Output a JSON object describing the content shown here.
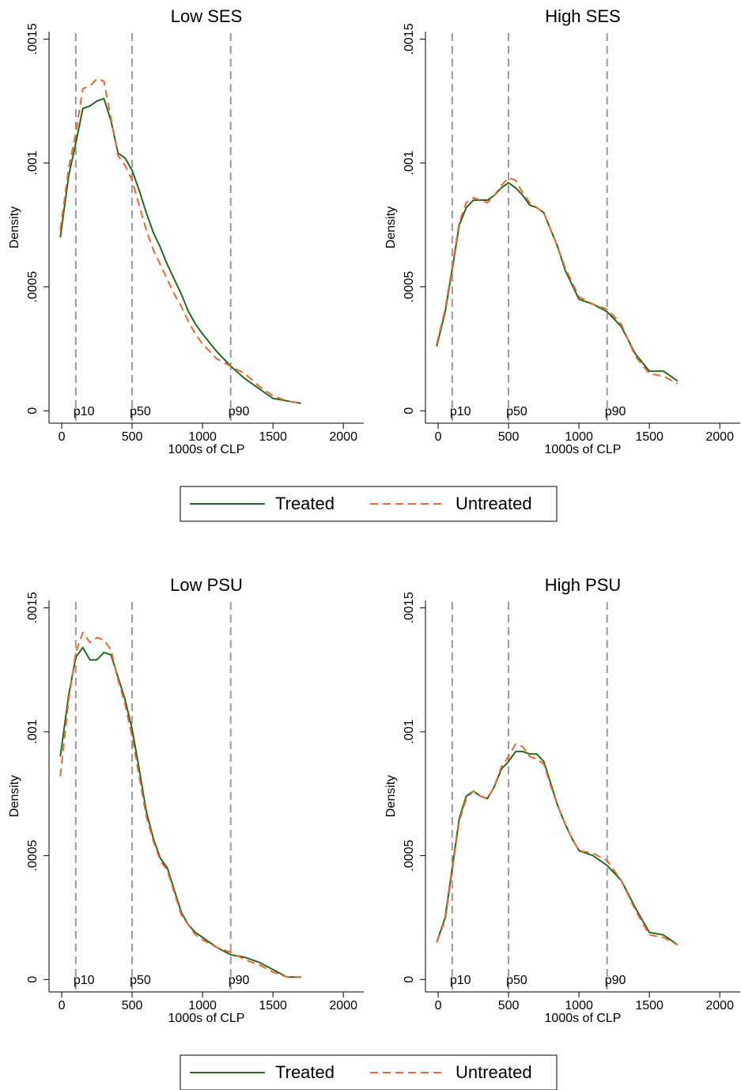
{
  "chart_data": [
    {
      "type": "line",
      "title": "Low SES",
      "xlabel": "1000s of CLP",
      "ylabel": "Density",
      "x": [
        -10,
        50,
        100,
        150,
        200,
        250,
        300,
        350,
        400,
        450,
        500,
        550,
        600,
        650,
        700,
        750,
        800,
        850,
        900,
        950,
        1000,
        1100,
        1200,
        1300,
        1400,
        1500,
        1600,
        1700
      ],
      "series": [
        {
          "name": "Treated",
          "color": "#1f6b1f",
          "style": "solid",
          "values": [
            0.0007,
            0.00095,
            0.00108,
            0.00122,
            0.00123,
            0.00125,
            0.00126,
            0.00117,
            0.00104,
            0.00102,
            0.00097,
            0.00089,
            0.0008,
            0.00072,
            0.00066,
            0.00059,
            0.00053,
            0.00047,
            0.0004,
            0.00035,
            0.00031,
            0.00024,
            0.00018,
            0.00013,
            9e-05,
            5e-05,
            4e-05,
            3e-05
          ]
        },
        {
          "name": "Untreated",
          "color": "#f0642d",
          "style": "dashed",
          "values": [
            0.00073,
            0.00098,
            0.00112,
            0.0013,
            0.00131,
            0.00134,
            0.00133,
            0.00118,
            0.00103,
            0.00099,
            0.00093,
            0.00083,
            0.00073,
            0.00065,
            0.00059,
            0.00053,
            0.00047,
            0.00042,
            0.00036,
            0.00031,
            0.00027,
            0.00021,
            0.00018,
            0.00015,
            0.0001,
            6e-05,
            4e-05,
            3e-05
          ]
        }
      ],
      "vlines": [
        {
          "value": 100,
          "label": "p10"
        },
        {
          "value": 500,
          "label": "p50"
        },
        {
          "value": 1200,
          "label": "p90"
        }
      ],
      "xlim": [
        -90,
        2145
      ],
      "xticks": [
        0,
        500,
        1000,
        1500,
        2000
      ],
      "ylim": [
        -5e-05,
        0.00153
      ],
      "yticks": [
        0,
        {
          "value": 0.0005,
          "label": ".0005"
        },
        {
          "value": 0.001,
          "label": ".001"
        },
        {
          "value": 0.0015,
          "label": ".0015"
        }
      ],
      "legend": "bottom"
    },
    {
      "type": "line",
      "title": "High SES",
      "xlabel": "1000s of CLP",
      "ylabel": "Density",
      "x": [
        -10,
        50,
        100,
        150,
        200,
        250,
        300,
        350,
        400,
        450,
        500,
        550,
        600,
        650,
        700,
        750,
        800,
        850,
        900,
        950,
        1000,
        1100,
        1200,
        1300,
        1400,
        1500,
        1600,
        1700
      ],
      "series": [
        {
          "name": "Treated",
          "color": "#1f6b1f",
          "style": "solid",
          "values": [
            0.00026,
            0.0004,
            0.00057,
            0.00075,
            0.00082,
            0.00085,
            0.00085,
            0.00085,
            0.00087,
            0.0009,
            0.00092,
            0.0009,
            0.00087,
            0.00083,
            0.00082,
            0.0008,
            0.00073,
            0.00066,
            0.00057,
            0.00051,
            0.00045,
            0.00043,
            0.0004,
            0.00034,
            0.00023,
            0.00016,
            0.00016,
            0.00012
          ]
        },
        {
          "name": "Untreated",
          "color": "#f0642d",
          "style": "dashed",
          "values": [
            0.00027,
            0.00041,
            0.00058,
            0.00076,
            0.00084,
            0.00086,
            0.00085,
            0.00084,
            0.00087,
            0.00091,
            0.00094,
            0.00093,
            0.00088,
            0.00084,
            0.00082,
            0.0008,
            0.00073,
            0.00066,
            0.00058,
            0.00052,
            0.00046,
            0.00043,
            0.00041,
            0.00035,
            0.00022,
            0.00015,
            0.00014,
            0.00011
          ]
        }
      ],
      "vlines": [
        {
          "value": 100,
          "label": "p10"
        },
        {
          "value": 500,
          "label": "p50"
        },
        {
          "value": 1200,
          "label": "p90"
        }
      ],
      "xlim": [
        -90,
        2145
      ],
      "xticks": [
        0,
        500,
        1000,
        1500,
        2000
      ],
      "ylim": [
        -5e-05,
        0.00153
      ],
      "yticks": [
        0,
        {
          "value": 0.0005,
          "label": ".0005"
        },
        {
          "value": 0.001,
          "label": ".001"
        },
        {
          "value": 0.0015,
          "label": ".0015"
        }
      ]
    },
    {
      "type": "line",
      "title": "Low PSU",
      "xlabel": "1000s of CLP",
      "ylabel": "Density",
      "x": [
        -10,
        50,
        100,
        150,
        200,
        250,
        300,
        350,
        400,
        450,
        500,
        550,
        600,
        650,
        700,
        750,
        800,
        850,
        900,
        950,
        1000,
        1100,
        1200,
        1300,
        1400,
        1500,
        1600,
        1700
      ],
      "series": [
        {
          "name": "Treated",
          "color": "#1f6b1f",
          "style": "solid",
          "values": [
            0.0009,
            0.00115,
            0.0013,
            0.00134,
            0.00129,
            0.00129,
            0.00132,
            0.00131,
            0.00122,
            0.00113,
            0.00101,
            0.00085,
            0.00068,
            0.00057,
            0.00049,
            0.00045,
            0.00036,
            0.00027,
            0.00022,
            0.00019,
            0.00017,
            0.00013,
            0.0001,
            9e-05,
            7e-05,
            4e-05,
            1e-05,
            1e-05
          ]
        },
        {
          "name": "Untreated",
          "color": "#f0642d",
          "style": "dashed",
          "values": [
            0.00082,
            0.00113,
            0.00132,
            0.0014,
            0.00136,
            0.00138,
            0.00137,
            0.00133,
            0.00121,
            0.00111,
            0.00098,
            0.00082,
            0.00066,
            0.00056,
            0.00048,
            0.00044,
            0.00035,
            0.00026,
            0.00022,
            0.00018,
            0.00016,
            0.00013,
            0.00011,
            8e-05,
            6e-05,
            3e-05,
            1e-05,
            1e-05
          ]
        }
      ],
      "vlines": [
        {
          "value": 100,
          "label": "p10"
        },
        {
          "value": 500,
          "label": "p50"
        },
        {
          "value": 1200,
          "label": "p90"
        }
      ],
      "xlim": [
        -90,
        2145
      ],
      "xticks": [
        0,
        500,
        1000,
        1500,
        2000
      ],
      "ylim": [
        -5e-05,
        0.00153
      ],
      "yticks": [
        0,
        {
          "value": 0.0005,
          "label": ".0005"
        },
        {
          "value": 0.001,
          "label": ".001"
        },
        {
          "value": 0.0015,
          "label": ".0015"
        }
      ],
      "legend": "bottom"
    },
    {
      "type": "line",
      "title": "High PSU",
      "xlabel": "1000s of CLP",
      "ylabel": "Density",
      "x": [
        -10,
        50,
        100,
        150,
        200,
        250,
        300,
        350,
        400,
        450,
        500,
        550,
        600,
        650,
        700,
        750,
        800,
        850,
        900,
        950,
        1000,
        1100,
        1200,
        1300,
        1400,
        1500,
        1600,
        1700
      ],
      "series": [
        {
          "name": "Treated",
          "color": "#1f6b1f",
          "style": "solid",
          "values": [
            0.00015,
            0.00025,
            0.00045,
            0.00065,
            0.00074,
            0.00076,
            0.00074,
            0.00073,
            0.00078,
            0.00085,
            0.00088,
            0.00092,
            0.00092,
            0.00091,
            0.00091,
            0.00088,
            0.00079,
            0.0007,
            0.00063,
            0.00057,
            0.00052,
            0.0005,
            0.00046,
            0.0004,
            0.00029,
            0.00019,
            0.00018,
            0.00014
          ]
        },
        {
          "name": "Untreated",
          "color": "#f0642d",
          "style": "dashed",
          "values": [
            0.00015,
            0.00024,
            0.00044,
            0.00064,
            0.00073,
            0.00076,
            0.00074,
            0.00073,
            0.00078,
            0.00086,
            0.0009,
            0.00095,
            0.00094,
            0.0009,
            0.00089,
            0.00087,
            0.00078,
            0.0007,
            0.00063,
            0.00057,
            0.00052,
            0.00051,
            0.00048,
            0.0004,
            0.00028,
            0.00018,
            0.00017,
            0.00014
          ]
        }
      ],
      "vlines": [
        {
          "value": 100,
          "label": "p10"
        },
        {
          "value": 500,
          "label": "p50"
        },
        {
          "value": 1200,
          "label": "p90"
        }
      ],
      "xlim": [
        -90,
        2145
      ],
      "xticks": [
        0,
        500,
        1000,
        1500,
        2000
      ],
      "ylim": [
        -5e-05,
        0.00153
      ],
      "yticks": [
        0,
        {
          "value": 0.0005,
          "label": ".0005"
        },
        {
          "value": 0.001,
          "label": ".001"
        },
        {
          "value": 0.0015,
          "label": ".0015"
        }
      ]
    }
  ]
}
